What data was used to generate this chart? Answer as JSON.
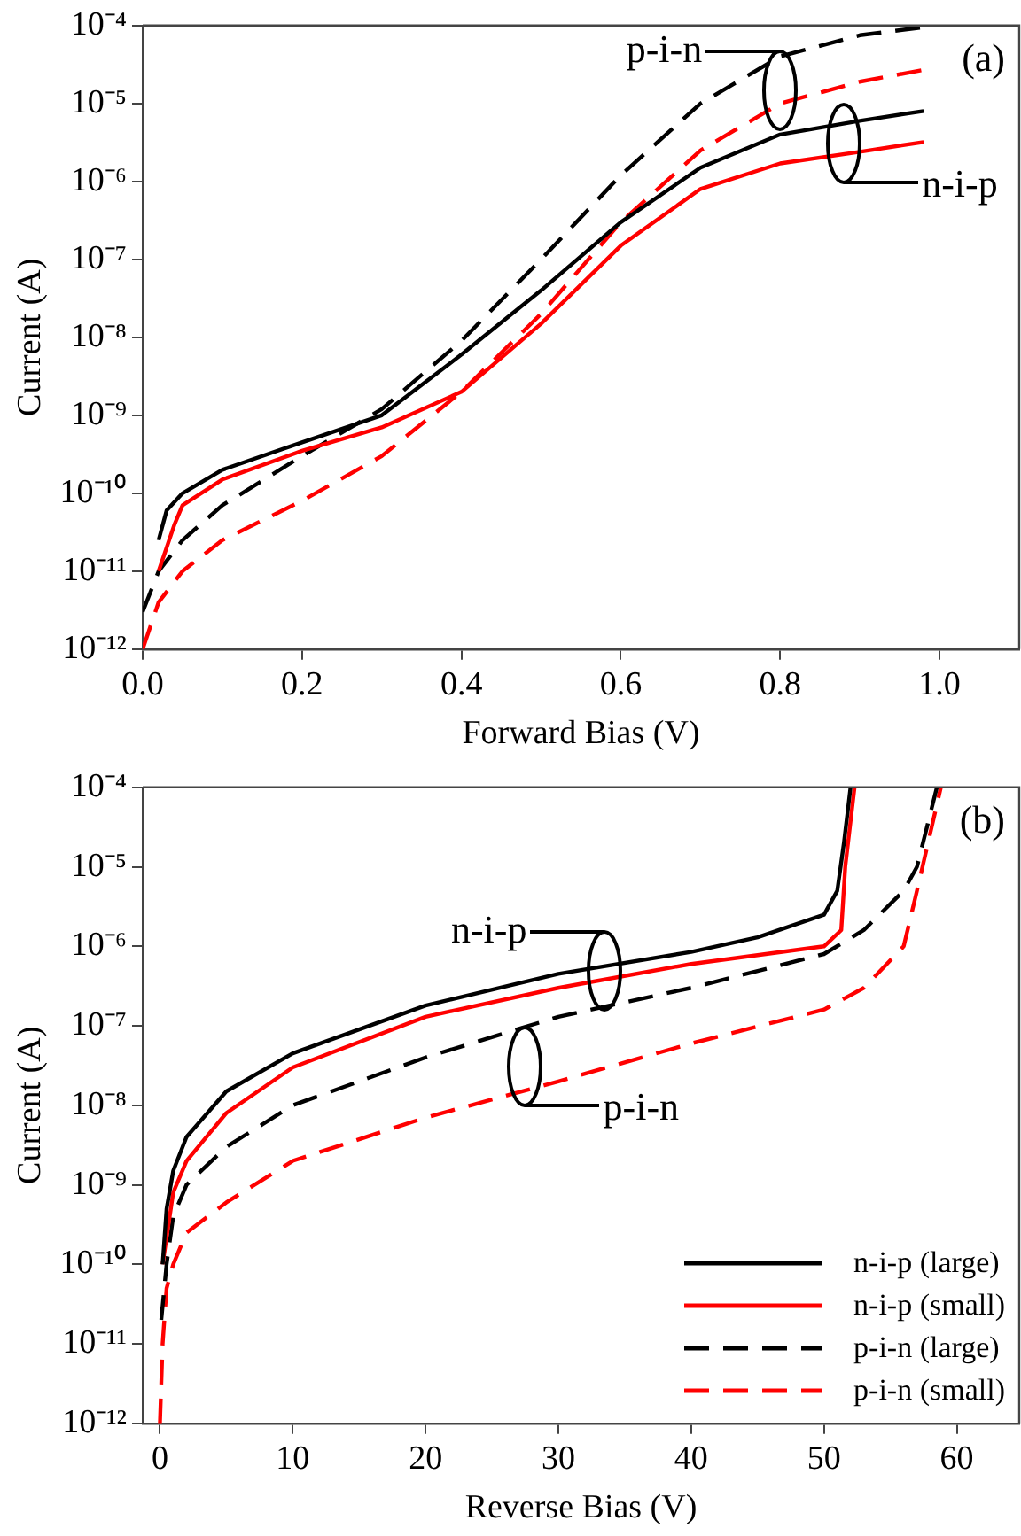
{
  "chart_data": [
    {
      "type": "line",
      "xlabel": "Forward Bias (V)",
      "ylabel": "Current (A)",
      "log": "y",
      "xlim": [
        0,
        1.1
      ],
      "xticks": [
        {
          "value": 0,
          "label": "0.0"
        },
        0.2,
        0.4,
        0.6,
        0.8,
        {
          "value": 1,
          "label": "1.0"
        }
      ],
      "ylim": [
        1e-12,
        0.0001
      ],
      "yticks": [
        {
          "value": 1e-12,
          "label": "10⁻¹²"
        },
        {
          "value": 1e-11,
          "label": "10⁻¹¹"
        },
        {
          "value": 1e-10,
          "label": "10⁻¹⁰"
        },
        {
          "value": 1e-09,
          "label": "10⁻⁹"
        },
        {
          "value": 1e-08,
          "label": "10⁻⁸"
        },
        {
          "value": 1e-07,
          "label": "10⁻⁷"
        },
        {
          "value": 1e-06,
          "label": "10⁻⁶"
        },
        {
          "value": 1e-05,
          "label": "10⁻⁵"
        },
        {
          "value": 0.0001,
          "label": "10⁻⁴"
        }
      ],
      "grid": false,
      "legend": false,
      "series": [
        {
          "color": "#000000",
          "line_style": "solid",
          "x": [
            0.02,
            0.03,
            0.05,
            0.1,
            0.2,
            0.3,
            0.4,
            0.5,
            0.6,
            0.7,
            0.8,
            0.9,
            0.98
          ],
          "values": [
            2.5e-11,
            6e-11,
            1e-10,
            2e-10,
            4.5e-10,
            1e-09,
            6e-09,
            4e-08,
            3e-07,
            1.5e-06,
            4e-06,
            6e-06,
            8e-06
          ]
        },
        {
          "color": "#ff0000",
          "line_style": "solid",
          "x": [
            0.02,
            0.04,
            0.05,
            0.1,
            0.2,
            0.3,
            0.4,
            0.5,
            0.6,
            0.7,
            0.8,
            0.9,
            0.98
          ],
          "values": [
            1e-11,
            4e-11,
            7e-11,
            1.5e-10,
            3.5e-10,
            7e-10,
            2e-09,
            1.5e-08,
            1.5e-07,
            8e-07,
            1.7e-06,
            2.4e-06,
            3.2e-06
          ]
        },
        {
          "color": "#000000",
          "line_style": "dashed",
          "x": [
            0,
            0.02,
            0.05,
            0.1,
            0.2,
            0.3,
            0.4,
            0.5,
            0.6,
            0.7,
            0.8,
            0.9,
            0.98
          ],
          "values": [
            3e-12,
            1e-11,
            2.5e-11,
            7e-11,
            3e-10,
            1.2e-09,
            9e-09,
            1e-07,
            1.2e-06,
            1e-05,
            4e-05,
            7.5e-05,
            9.5e-05
          ]
        },
        {
          "color": "#ff0000",
          "line_style": "dashed",
          "x": [
            0,
            0.02,
            0.05,
            0.1,
            0.2,
            0.3,
            0.4,
            0.5,
            0.6,
            0.7,
            0.8,
            0.9,
            0.98
          ],
          "values": [
            1e-12,
            4e-12,
            1e-11,
            2.5e-11,
            8e-11,
            3e-10,
            2e-09,
            2e-08,
            3e-07,
            2.5e-06,
            1e-05,
            1.9e-05,
            2.7e-05
          ]
        }
      ],
      "annotations": [
        "(a)",
        {
          "text": "p-i-n",
          "x": 0.8,
          "y": 1.5e-05
        },
        {
          "text": "n-i-p",
          "x": 0.88,
          "y": 3e-06
        }
      ]
    },
    {
      "type": "line",
      "xlabel": "Reverse Bias (V)",
      "ylabel": "Current (A)",
      "log": "y",
      "xlim": [
        -1.3,
        64.7
      ],
      "xticks": [
        0,
        10,
        20,
        30,
        40,
        50,
        60
      ],
      "ylim": [
        1e-12,
        0.0001
      ],
      "yticks": [
        {
          "value": 1e-12,
          "label": "10⁻¹²"
        },
        {
          "value": 1e-11,
          "label": "10⁻¹¹"
        },
        {
          "value": 1e-10,
          "label": "10⁻¹⁰"
        },
        {
          "value": 1e-09,
          "label": "10⁻⁹"
        },
        {
          "value": 1e-08,
          "label": "10⁻⁸"
        },
        {
          "value": 1e-07,
          "label": "10⁻⁷"
        },
        {
          "value": 1e-06,
          "label": "10⁻⁶"
        },
        {
          "value": 1e-05,
          "label": "10⁻⁵"
        },
        {
          "value": 0.0001,
          "label": "10⁻⁴"
        }
      ],
      "grid": false,
      "legend": "bottom right",
      "series": [
        {
          "name": "n-i-p (large)",
          "color": "#000000",
          "line_style": "solid",
          "x": [
            0.2,
            0.5,
            1,
            2,
            5,
            10,
            20,
            30,
            40,
            45,
            50,
            51,
            51.5,
            52
          ],
          "values": [
            1e-10,
            5e-10,
            1.5e-09,
            4e-09,
            1.5e-08,
            4.5e-08,
            1.8e-07,
            4.5e-07,
            8.5e-07,
            1.3e-06,
            2.5e-06,
            5e-06,
            2e-05,
            0.0001
          ]
        },
        {
          "name": "n-i-p (small)",
          "color": "#ff0000",
          "line_style": "solid",
          "x": [
            0.2,
            1,
            2,
            5,
            10,
            20,
            30,
            40,
            50,
            51.3,
            51.6,
            52.3
          ],
          "values": [
            1e-10,
            8e-10,
            2e-09,
            8e-09,
            3e-08,
            1.3e-07,
            3e-07,
            6e-07,
            1e-06,
            1.6e-06,
            1e-05,
            0.0001
          ]
        },
        {
          "name": "p-i-n (large)",
          "color": "#000000",
          "line_style": "dashed",
          "x": [
            0.1,
            0.5,
            1,
            2,
            5,
            10,
            20,
            30,
            40,
            50,
            53,
            56,
            57,
            58.5
          ],
          "values": [
            2e-11,
            1e-10,
            4e-10,
            1e-09,
            3e-09,
            1e-08,
            4e-08,
            1.3e-07,
            3e-07,
            8e-07,
            1.6e-06,
            5e-06,
            1e-05,
            0.0001
          ]
        },
        {
          "name": "p-i-n (small)",
          "color": "#ff0000",
          "line_style": "dashed",
          "x": [
            0,
            0.2,
            0.5,
            1,
            2,
            5,
            10,
            20,
            30,
            40,
            50,
            53,
            56,
            57,
            58.8
          ],
          "values": [
            1e-12,
            1e-11,
            5e-11,
            1e-10,
            2.5e-10,
            6e-10,
            2e-09,
            7e-09,
            2e-08,
            6e-08,
            1.6e-07,
            3e-07,
            1e-06,
            5e-06,
            0.0001
          ]
        }
      ],
      "annotations": [
        "(b)",
        {
          "text": "n-i-p",
          "x": 33.5,
          "y": 5e-07
        },
        {
          "text": "p-i-n",
          "x": 27.5,
          "y": 3e-08
        }
      ]
    }
  ]
}
